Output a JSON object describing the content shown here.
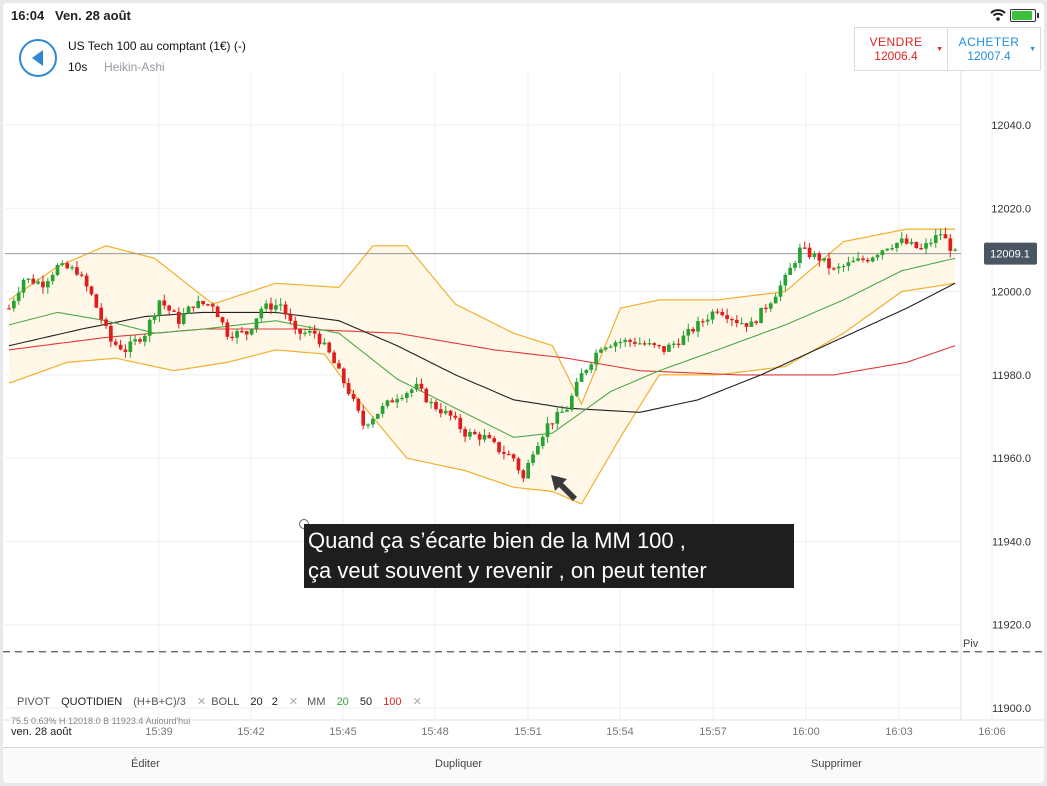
{
  "status_bar": {
    "time": "16:04",
    "date": "Ven. 28 août"
  },
  "header": {
    "instrument": "US Tech 100 au comptant (1€) (-)",
    "interval": "10s",
    "chart_type": "Heikin-Ashi",
    "sell": {
      "label": "VENDRE",
      "price": "12006.4"
    },
    "buy": {
      "label": "ACHETER",
      "price": "12007.4"
    }
  },
  "colors": {
    "up_candle": "#26a331",
    "down_candle": "#e01d1d",
    "bollinger": "#f0b030",
    "bollinger_fill": "#fff8e8",
    "mm20": "#4caa4c",
    "mm50": "#222222",
    "mm100": "#e03a3a",
    "accent": "#2e86d6"
  },
  "chart_data": {
    "type": "candlestick",
    "price_axis": {
      "ticks": [
        "12040.0",
        "12020.0",
        "12000.0",
        "11980.0",
        "11960.0",
        "11940.0",
        "11920.0",
        "11900.0"
      ],
      "ylim": [
        11898,
        12060
      ]
    },
    "time_axis": {
      "ticks": [
        "15:39",
        "15:42",
        "15:45",
        "15:48",
        "15:51",
        "15:54",
        "15:57",
        "16:00",
        "16:03",
        "16:06"
      ]
    },
    "current_price_label": "12009.1",
    "current_price": 12009.1,
    "pivot": {
      "label": "Piv",
      "value": 11913.5
    },
    "price_path": [
      [
        0,
        11996
      ],
      [
        3,
        12003
      ],
      [
        7,
        12002
      ],
      [
        10,
        12006
      ],
      [
        14,
        12005
      ],
      [
        17,
        11999
      ],
      [
        21,
        11988
      ],
      [
        24,
        11986
      ],
      [
        28,
        11990
      ],
      [
        31,
        11998
      ],
      [
        35,
        11993
      ],
      [
        38,
        11997
      ],
      [
        42,
        11997
      ],
      [
        45,
        11990
      ],
      [
        49,
        11990
      ],
      [
        52,
        11996
      ],
      [
        56,
        11997
      ],
      [
        59,
        11990
      ],
      [
        63,
        11990
      ],
      [
        66,
        11985
      ],
      [
        70,
        11976
      ],
      [
        73,
        11968
      ],
      [
        77,
        11972
      ],
      [
        80,
        11975
      ],
      [
        84,
        11977
      ],
      [
        87,
        11973
      ],
      [
        91,
        11970
      ],
      [
        94,
        11966
      ],
      [
        98,
        11965
      ],
      [
        101,
        11962
      ],
      [
        104,
        11960
      ],
      [
        106,
        11955
      ],
      [
        108,
        11962
      ],
      [
        111,
        11968
      ],
      [
        115,
        11972
      ],
      [
        118,
        11980
      ],
      [
        122,
        11987
      ],
      [
        125,
        11988
      ],
      [
        129,
        11988
      ],
      [
        132,
        11987
      ],
      [
        135,
        11986
      ],
      [
        139,
        11989
      ],
      [
        143,
        11993
      ],
      [
        146,
        11996
      ],
      [
        150,
        11993
      ],
      [
        153,
        11992
      ],
      [
        157,
        11998
      ],
      [
        160,
        12003
      ],
      [
        163,
        12010
      ],
      [
        167,
        12008
      ],
      [
        170,
        12005
      ],
      [
        174,
        12007
      ],
      [
        177,
        12008
      ],
      [
        181,
        12011
      ],
      [
        184,
        12012
      ],
      [
        188,
        12010
      ],
      [
        192,
        12014
      ],
      [
        195,
        12009
      ]
    ],
    "ma": {
      "mm20": [
        [
          0,
          11992
        ],
        [
          10,
          11995
        ],
        [
          20,
          11993
        ],
        [
          30,
          11990
        ],
        [
          40,
          11991
        ],
        [
          55,
          11993
        ],
        [
          68,
          11990
        ],
        [
          80,
          11979
        ],
        [
          92,
          11972
        ],
        [
          104,
          11965
        ],
        [
          112,
          11966
        ],
        [
          124,
          11976
        ],
        [
          134,
          11981
        ],
        [
          146,
          11986
        ],
        [
          160,
          11992
        ],
        [
          172,
          11998
        ],
        [
          184,
          12005
        ],
        [
          195,
          12008
        ]
      ],
      "mm50": [
        [
          0,
          11987
        ],
        [
          15,
          11991
        ],
        [
          28,
          11994
        ],
        [
          40,
          11995
        ],
        [
          55,
          11995
        ],
        [
          68,
          11993
        ],
        [
          80,
          11987
        ],
        [
          92,
          11980
        ],
        [
          104,
          11974
        ],
        [
          115,
          11972
        ],
        [
          130,
          11971
        ],
        [
          142,
          11974
        ],
        [
          155,
          11980
        ],
        [
          170,
          11988
        ],
        [
          185,
          11996
        ],
        [
          195,
          12002
        ]
      ],
      "mm100": [
        [
          0,
          11986
        ],
        [
          20,
          11989
        ],
        [
          40,
          11991
        ],
        [
          60,
          11991
        ],
        [
          80,
          11990
        ],
        [
          100,
          11986
        ],
        [
          115,
          11984
        ],
        [
          130,
          11981
        ],
        [
          150,
          11980
        ],
        [
          170,
          11980
        ],
        [
          185,
          11983
        ],
        [
          195,
          11987
        ]
      ]
    },
    "bollinger": {
      "upper": [
        [
          0,
          11998
        ],
        [
          10,
          12006
        ],
        [
          20,
          12011
        ],
        [
          30,
          12008
        ],
        [
          42,
          11997
        ],
        [
          55,
          12002
        ],
        [
          68,
          12001
        ],
        [
          75,
          12011
        ],
        [
          82,
          12011
        ],
        [
          92,
          11997
        ],
        [
          104,
          11990
        ],
        [
          112,
          11987
        ],
        [
          118,
          11973
        ],
        [
          126,
          11996
        ],
        [
          134,
          11998
        ],
        [
          146,
          11998
        ],
        [
          160,
          12000
        ],
        [
          172,
          12012
        ],
        [
          185,
          12015
        ],
        [
          195,
          12015
        ]
      ],
      "lower": [
        [
          0,
          11978
        ],
        [
          12,
          11983
        ],
        [
          22,
          11984
        ],
        [
          34,
          11981
        ],
        [
          45,
          11983
        ],
        [
          55,
          11986
        ],
        [
          65,
          11985
        ],
        [
          72,
          11974
        ],
        [
          82,
          11960
        ],
        [
          94,
          11957
        ],
        [
          104,
          11953
        ],
        [
          112,
          11952
        ],
        [
          118,
          11949
        ],
        [
          126,
          11965
        ],
        [
          134,
          11980
        ],
        [
          146,
          11980
        ],
        [
          160,
          11982
        ],
        [
          172,
          11990
        ],
        [
          184,
          12000
        ],
        [
          195,
          12002
        ]
      ]
    }
  },
  "caption": {
    "line1": "Quand ça s’écarte bien de la MM 100 ,",
    "line2": "ça veut souvent y revenir , on peut tenter"
  },
  "indicators": {
    "pivot_label": "PIVOT",
    "pivot_type": "QUOTIDIEN",
    "pivot_formula": "(H+B+C)/3",
    "boll_label": "BOLL",
    "boll_period": "20",
    "boll_dev": "2",
    "mm_label": "MM",
    "mm_periods": [
      "20",
      "50",
      "100"
    ],
    "info": "75.5    0.63%       H 12018.0   B 11923.4   Aujourd'hui"
  },
  "date_label": "ven. 28 août",
  "toolbar": {
    "edit": "Éditer",
    "duplicate": "Dupliquer",
    "delete": "Supprimer"
  }
}
